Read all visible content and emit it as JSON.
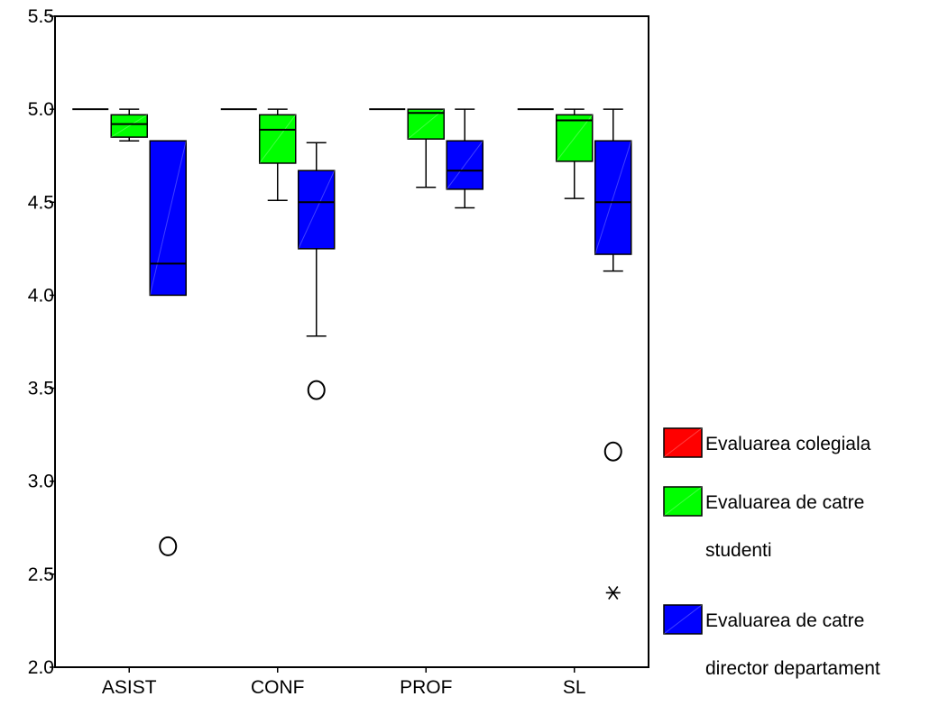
{
  "chart_data": {
    "type": "boxplot",
    "categories": [
      "ASIST",
      "CONF",
      "PROF",
      "SL"
    ],
    "ylim": [
      2.0,
      5.5
    ],
    "yticks": [
      "2.0",
      "2.5",
      "3.0",
      "3.5",
      "4.0",
      "4.5",
      "5.0",
      "5.5"
    ],
    "grid": false,
    "legend_position": "right",
    "series": [
      {
        "name": "Evaluarea colegiala",
        "color": "#ff0000",
        "boxes": [
          {
            "category": "ASIST",
            "min": 5.0,
            "q1": 5.0,
            "median": 5.0,
            "q3": 5.0,
            "max": 5.0,
            "outliers": [],
            "extremes": []
          },
          {
            "category": "CONF",
            "min": 5.0,
            "q1": 5.0,
            "median": 5.0,
            "q3": 5.0,
            "max": 5.0,
            "outliers": [],
            "extremes": []
          },
          {
            "category": "PROF",
            "min": 5.0,
            "q1": 5.0,
            "median": 5.0,
            "q3": 5.0,
            "max": 5.0,
            "outliers": [],
            "extremes": []
          },
          {
            "category": "SL",
            "min": 5.0,
            "q1": 5.0,
            "median": 5.0,
            "q3": 5.0,
            "max": 5.0,
            "outliers": [],
            "extremes": []
          }
        ]
      },
      {
        "name": "Evaluarea de catre studenti",
        "color": "#00ff00",
        "boxes": [
          {
            "category": "ASIST",
            "min": 4.83,
            "q1": 4.85,
            "median": 4.92,
            "q3": 4.97,
            "max": 5.0,
            "outliers": [],
            "extremes": []
          },
          {
            "category": "CONF",
            "min": 4.51,
            "q1": 4.71,
            "median": 4.89,
            "q3": 4.97,
            "max": 5.0,
            "outliers": [],
            "extremes": []
          },
          {
            "category": "PROF",
            "min": 4.58,
            "q1": 4.84,
            "median": 4.98,
            "q3": 5.0,
            "max": 5.0,
            "outliers": [],
            "extremes": []
          },
          {
            "category": "SL",
            "min": 4.52,
            "q1": 4.72,
            "median": 4.94,
            "q3": 4.97,
            "max": 5.0,
            "outliers": [],
            "extremes": []
          }
        ]
      },
      {
        "name": "Evaluarea de catre director departament",
        "color": "#0000ff",
        "boxes": [
          {
            "category": "ASIST",
            "min": 4.0,
            "q1": 4.0,
            "median": 4.17,
            "q3": 4.83,
            "max": 4.83,
            "outliers": [
              2.65
            ],
            "extremes": []
          },
          {
            "category": "CONF",
            "min": 3.78,
            "q1": 4.25,
            "median": 4.5,
            "q3": 4.67,
            "max": 4.82,
            "outliers": [
              3.49
            ],
            "extremes": []
          },
          {
            "category": "PROF",
            "min": 4.47,
            "q1": 4.57,
            "median": 4.67,
            "q3": 4.83,
            "max": 5.0,
            "outliers": [],
            "extremes": []
          },
          {
            "category": "SL",
            "min": 4.13,
            "q1": 4.22,
            "median": 4.5,
            "q3": 4.83,
            "max": 5.0,
            "outliers": [
              3.16
            ],
            "extremes": [
              2.4
            ]
          }
        ]
      }
    ]
  },
  "legend": {
    "items": [
      {
        "lines": [
          "Evaluarea colegiala"
        ],
        "color": "#ff0000"
      },
      {
        "lines": [
          "Evaluarea de catre",
          "studenti"
        ],
        "color": "#00ff00"
      },
      {
        "lines": [
          "Evaluarea de catre",
          "director departament"
        ],
        "color": "#0000ff"
      }
    ]
  }
}
